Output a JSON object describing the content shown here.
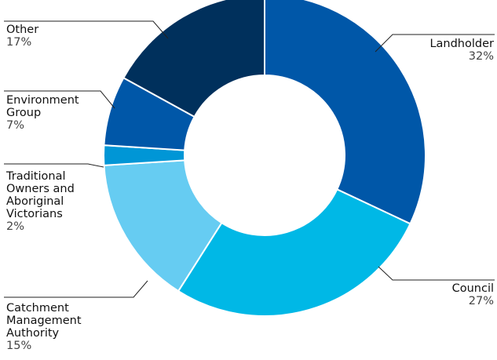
{
  "chart_data": {
    "type": "donut",
    "title": "",
    "unit": "%",
    "slices": [
      {
        "label": "Landholder",
        "value": 32,
        "value_label": "32%",
        "color": "#0057a8"
      },
      {
        "label": "Council",
        "value": 27,
        "value_label": "27%",
        "color": "#00b8e6"
      },
      {
        "label": "Catchment Management Authority",
        "value": 15,
        "value_label": "15%",
        "color": "#66ccf2"
      },
      {
        "label": "Traditional Owners and Aboriginal Victorians",
        "value": 2,
        "value_label": "2%",
        "color": "#0096d6"
      },
      {
        "label": "Environment Group",
        "value": 7,
        "value_label": "7%",
        "color": "#0057a8"
      },
      {
        "label": "Other",
        "value": 17,
        "value_label": "17%",
        "color": "#00305c"
      }
    ]
  },
  "labels": {
    "landholder": {
      "name": "Landholder",
      "pct": "32%"
    },
    "council": {
      "name": "Council",
      "pct": "27%"
    },
    "cma": {
      "lines": [
        "Catchment",
        "Management",
        "Authority"
      ],
      "pct": "15%"
    },
    "traditional": {
      "lines": [
        "Traditional",
        "Owners and",
        "Aboriginal",
        "Victorians"
      ],
      "pct": "2%"
    },
    "environment": {
      "lines": [
        "Environment",
        "Group"
      ],
      "pct": "7%"
    },
    "other": {
      "name": "Other",
      "pct": "17%"
    }
  }
}
